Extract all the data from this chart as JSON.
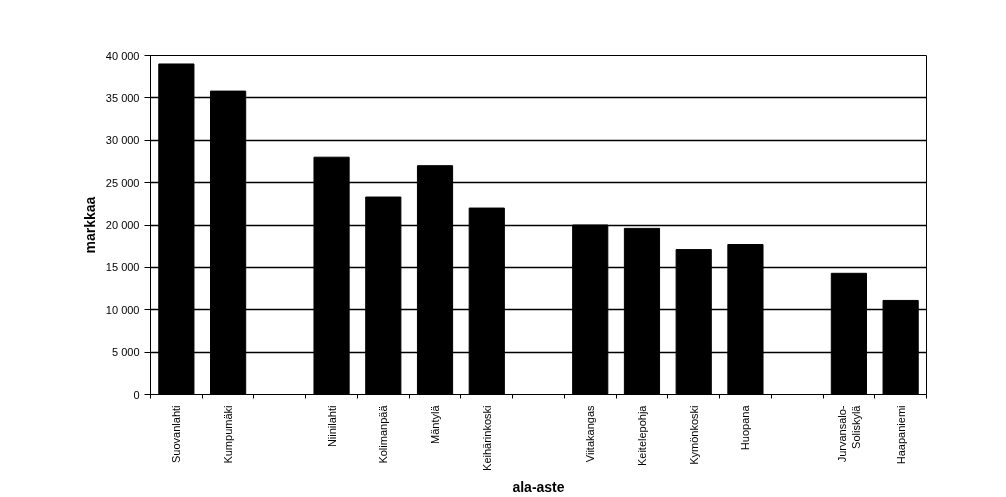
{
  "chart_data": {
    "type": "bar",
    "xlabel": "ala-aste",
    "ylabel": "markkaa",
    "categories": [
      "Suovanlahti",
      "Kumpumäki",
      null,
      "Niinilahti",
      "Kolimanpää",
      "Mäntylä",
      "Keihärinkoski",
      null,
      "Viitakangas",
      "Keitelepohja",
      "Kymönkoski",
      "Huopana",
      null,
      "Jurvansalo-\nSoliskylä",
      "Haapaniemi"
    ],
    "values": [
      39000,
      35800,
      null,
      28000,
      23300,
      27000,
      22000,
      null,
      20000,
      19600,
      17100,
      17700,
      null,
      14300,
      11100
    ],
    "color": "#000000",
    "ylim": [
      0,
      40000
    ],
    "yticks": [
      0,
      {
        "value": 5000,
        "label": "5 000"
      },
      {
        "value": 10000,
        "label": "10 000"
      },
      {
        "value": 15000,
        "label": "15 000"
      },
      {
        "value": 20000,
        "label": "20 000"
      },
      {
        "value": 25000,
        "label": "25 000"
      },
      {
        "value": 30000,
        "label": "30 000"
      },
      {
        "value": 35000,
        "label": "35 000"
      },
      {
        "value": 40000,
        "label": "40 000"
      }
    ],
    "grid": "y"
  }
}
